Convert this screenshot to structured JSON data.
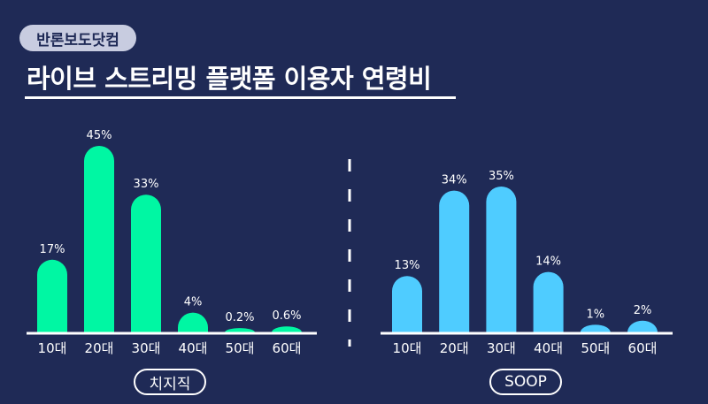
{
  "badge": "반론보도닷컴",
  "title": "라이브 스트리밍 플랫폼 이용자 연령비",
  "colors": {
    "background": "#1f2a56",
    "chzzk": "#00f7a3",
    "soop": "#4fccff"
  },
  "chart_data": [
    {
      "type": "bar",
      "title": "치지직",
      "categories": [
        "10대",
        "20대",
        "30대",
        "40대",
        "50대",
        "60대"
      ],
      "values": [
        17,
        45,
        33,
        4,
        0.2,
        0.6
      ],
      "labels": [
        "17%",
        "45%",
        "33%",
        "4%",
        "0.2%",
        "0.6%"
      ],
      "unit": "%"
    },
    {
      "type": "bar",
      "title": "SOOP",
      "categories": [
        "10대",
        "20대",
        "30대",
        "40대",
        "50대",
        "60대"
      ],
      "values": [
        13,
        34,
        35,
        14,
        1,
        2
      ],
      "labels": [
        "13%",
        "34%",
        "35%",
        "14%",
        "1%",
        "2%"
      ],
      "unit": "%"
    }
  ]
}
